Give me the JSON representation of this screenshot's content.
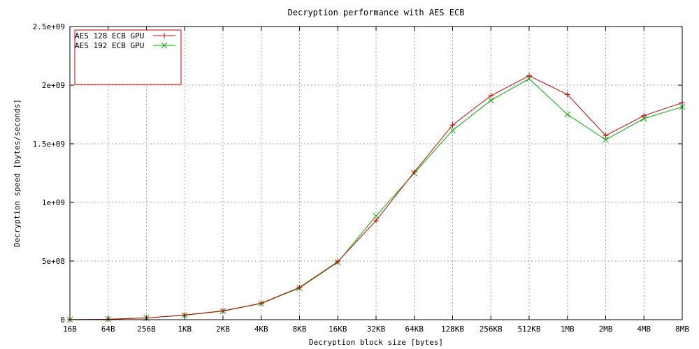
{
  "chart_data": {
    "type": "line",
    "title": "Decryption performance with AES ECB",
    "xlabel": "Decryption block size [bytes]",
    "ylabel": "Decryption speed [bytes/seconds]",
    "categories": [
      "16B",
      "64B",
      "256B",
      "1KB",
      "2KB",
      "4KB",
      "8KB",
      "16KB",
      "32KB",
      "64KB",
      "128KB",
      "256KB",
      "512KB",
      "1MB",
      "2MB",
      "4MB",
      "8MB"
    ],
    "series": [
      {
        "name": "AES 128 ECB GPU",
        "color": "#cc0000",
        "marker": "plus",
        "values": [
          1000000,
          4000000,
          15000000,
          40000000,
          75000000,
          140000000,
          275000000,
          495000000,
          845000000,
          1260000000,
          1660000000,
          1910000000,
          2080000000,
          1920000000,
          1570000000,
          1740000000,
          1850000000
        ]
      },
      {
        "name": "AES 192 ECB GPU",
        "color": "#00aa00",
        "marker": "cross",
        "values": [
          1000000,
          4000000,
          15000000,
          38000000,
          73000000,
          138000000,
          270000000,
          490000000,
          885000000,
          1250000000,
          1615000000,
          1870000000,
          2055000000,
          1750000000,
          1535000000,
          1715000000,
          1815000000
        ]
      }
    ],
    "yticks": [
      {
        "value": 0,
        "label": "0"
      },
      {
        "value": 500000000,
        "label": "5e+08"
      },
      {
        "value": 1000000000,
        "label": "1e+09"
      },
      {
        "value": 1500000000,
        "label": "1.5e+09"
      },
      {
        "value": 2000000000,
        "label": "2e+09"
      },
      {
        "value": 2500000000,
        "label": "2.5e+09"
      }
    ],
    "ylim": [
      0,
      2500000000
    ],
    "grid": true,
    "legend_position": "top-left",
    "frame_color": "#000000",
    "grid_color": "#a0a0a0",
    "legend_border_color": "#cc0000"
  }
}
